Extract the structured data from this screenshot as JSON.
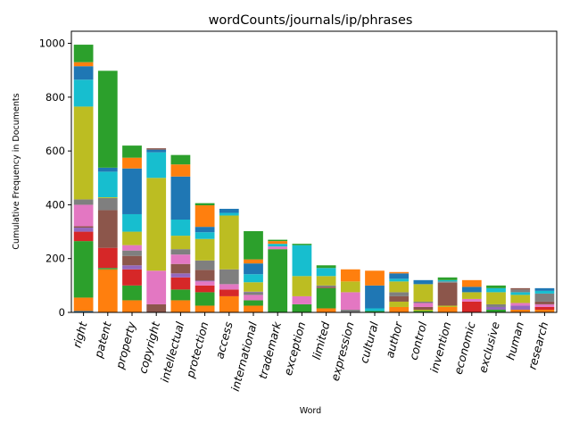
{
  "chart_data": {
    "type": "bar",
    "stacked": true,
    "title": "wordCounts/journals/ip/phrases",
    "xlabel": "Word",
    "ylabel": "Cumulative Frequency in Documents",
    "ylim": [
      0,
      1045
    ],
    "yticks": [
      0,
      200,
      400,
      600,
      800,
      1000
    ],
    "grid": false,
    "categories": [
      "right",
      "patent",
      "property",
      "copyright",
      "intellectual",
      "protection",
      "access",
      "international",
      "trademark",
      "exception",
      "limited",
      "expression",
      "cultural",
      "author",
      "control",
      "invention",
      "economic",
      "exclusive",
      "human",
      "research"
    ],
    "palette": [
      "#1f77b4",
      "#ff7f0e",
      "#2ca02c",
      "#d62728",
      "#9467bd",
      "#8c564b",
      "#e377c2",
      "#7f7f7f",
      "#bcbd22",
      "#17becf"
    ],
    "segments": [
      [
        [
          0,
          5
        ],
        [
          1,
          50
        ],
        [
          2,
          210
        ],
        [
          3,
          35
        ],
        [
          4,
          15
        ],
        [
          5,
          5
        ],
        [
          6,
          80
        ],
        [
          7,
          20
        ],
        [
          8,
          345
        ],
        [
          9,
          100
        ],
        [
          0,
          50
        ],
        [
          1,
          15
        ],
        [
          2,
          65
        ]
      ],
      [
        [
          1,
          160
        ],
        [
          2,
          5
        ],
        [
          3,
          75
        ],
        [
          5,
          140
        ],
        [
          7,
          45
        ],
        [
          8,
          3
        ],
        [
          9,
          95
        ],
        [
          0,
          15
        ],
        [
          2,
          360
        ]
      ],
      [
        [
          1,
          45
        ],
        [
          2,
          55
        ],
        [
          3,
          60
        ],
        [
          4,
          15
        ],
        [
          5,
          35
        ],
        [
          7,
          20
        ],
        [
          6,
          20
        ],
        [
          8,
          50
        ],
        [
          9,
          65
        ],
        [
          0,
          170
        ],
        [
          1,
          40
        ],
        [
          2,
          45
        ]
      ],
      [
        [
          5,
          30
        ],
        [
          6,
          125
        ],
        [
          8,
          345
        ],
        [
          9,
          95
        ],
        [
          0,
          10
        ],
        [
          5,
          5
        ]
      ],
      [
        [
          1,
          45
        ],
        [
          2,
          40
        ],
        [
          3,
          45
        ],
        [
          4,
          15
        ],
        [
          5,
          35
        ],
        [
          6,
          35
        ],
        [
          7,
          20
        ],
        [
          8,
          50
        ],
        [
          9,
          60
        ],
        [
          0,
          160
        ],
        [
          1,
          45
        ],
        [
          2,
          35
        ]
      ],
      [
        [
          1,
          25
        ],
        [
          2,
          50
        ],
        [
          3,
          25
        ],
        [
          6,
          15
        ],
        [
          4,
          3
        ],
        [
          5,
          40
        ],
        [
          7,
          35
        ],
        [
          8,
          80
        ],
        [
          9,
          25
        ],
        [
          0,
          20
        ],
        [
          1,
          80
        ],
        [
          2,
          8
        ]
      ],
      [
        [
          1,
          60
        ],
        [
          3,
          25
        ],
        [
          6,
          20
        ],
        [
          7,
          55
        ],
        [
          8,
          200
        ],
        [
          9,
          10
        ],
        [
          0,
          15
        ]
      ],
      [
        [
          1,
          25
        ],
        [
          2,
          20
        ],
        [
          6,
          20
        ],
        [
          7,
          10
        ],
        [
          4,
          2
        ],
        [
          8,
          35
        ],
        [
          9,
          30
        ],
        [
          0,
          40
        ],
        [
          1,
          15
        ],
        [
          2,
          105
        ]
      ],
      [
        [
          2,
          235
        ],
        [
          6,
          10
        ],
        [
          9,
          10
        ],
        [
          1,
          10
        ],
        [
          2,
          5
        ]
      ],
      [
        [
          2,
          30
        ],
        [
          6,
          30
        ],
        [
          8,
          75
        ],
        [
          9,
          115
        ],
        [
          2,
          5
        ]
      ],
      [
        [
          1,
          15
        ],
        [
          2,
          75
        ],
        [
          5,
          5
        ],
        [
          7,
          5
        ],
        [
          8,
          35
        ],
        [
          9,
          30
        ],
        [
          2,
          10
        ]
      ],
      [
        [
          7,
          10
        ],
        [
          6,
          65
        ],
        [
          8,
          40
        ],
        [
          1,
          45
        ]
      ],
      [
        [
          2,
          5
        ],
        [
          9,
          10
        ],
        [
          0,
          85
        ],
        [
          1,
          55
        ]
      ],
      [
        [
          1,
          20
        ],
        [
          8,
          20
        ],
        [
          5,
          20
        ],
        [
          7,
          15
        ],
        [
          8,
          40
        ],
        [
          9,
          10
        ],
        [
          0,
          20
        ],
        [
          1,
          5
        ]
      ],
      [
        [
          2,
          5
        ],
        [
          8,
          5
        ],
        [
          5,
          10
        ],
        [
          6,
          15
        ],
        [
          7,
          5
        ],
        [
          8,
          65
        ],
        [
          0,
          15
        ]
      ],
      [
        [
          1,
          20
        ],
        [
          8,
          5
        ],
        [
          5,
          85
        ],
        [
          7,
          5
        ],
        [
          9,
          5
        ],
        [
          2,
          10
        ]
      ],
      [
        [
          3,
          40
        ],
        [
          6,
          10
        ],
        [
          8,
          25
        ],
        [
          0,
          20
        ],
        [
          1,
          25
        ]
      ],
      [
        [
          2,
          10
        ],
        [
          4,
          10
        ],
        [
          7,
          10
        ],
        [
          8,
          45
        ],
        [
          9,
          15
        ],
        [
          2,
          10
        ]
      ],
      [
        [
          1,
          10
        ],
        [
          4,
          15
        ],
        [
          6,
          10
        ],
        [
          8,
          30
        ],
        [
          9,
          10
        ],
        [
          7,
          10
        ],
        [
          5,
          5
        ]
      ],
      [
        [
          1,
          10
        ],
        [
          3,
          10
        ],
        [
          6,
          10
        ],
        [
          5,
          10
        ],
        [
          7,
          30
        ],
        [
          9,
          10
        ],
        [
          0,
          10
        ]
      ]
    ]
  }
}
